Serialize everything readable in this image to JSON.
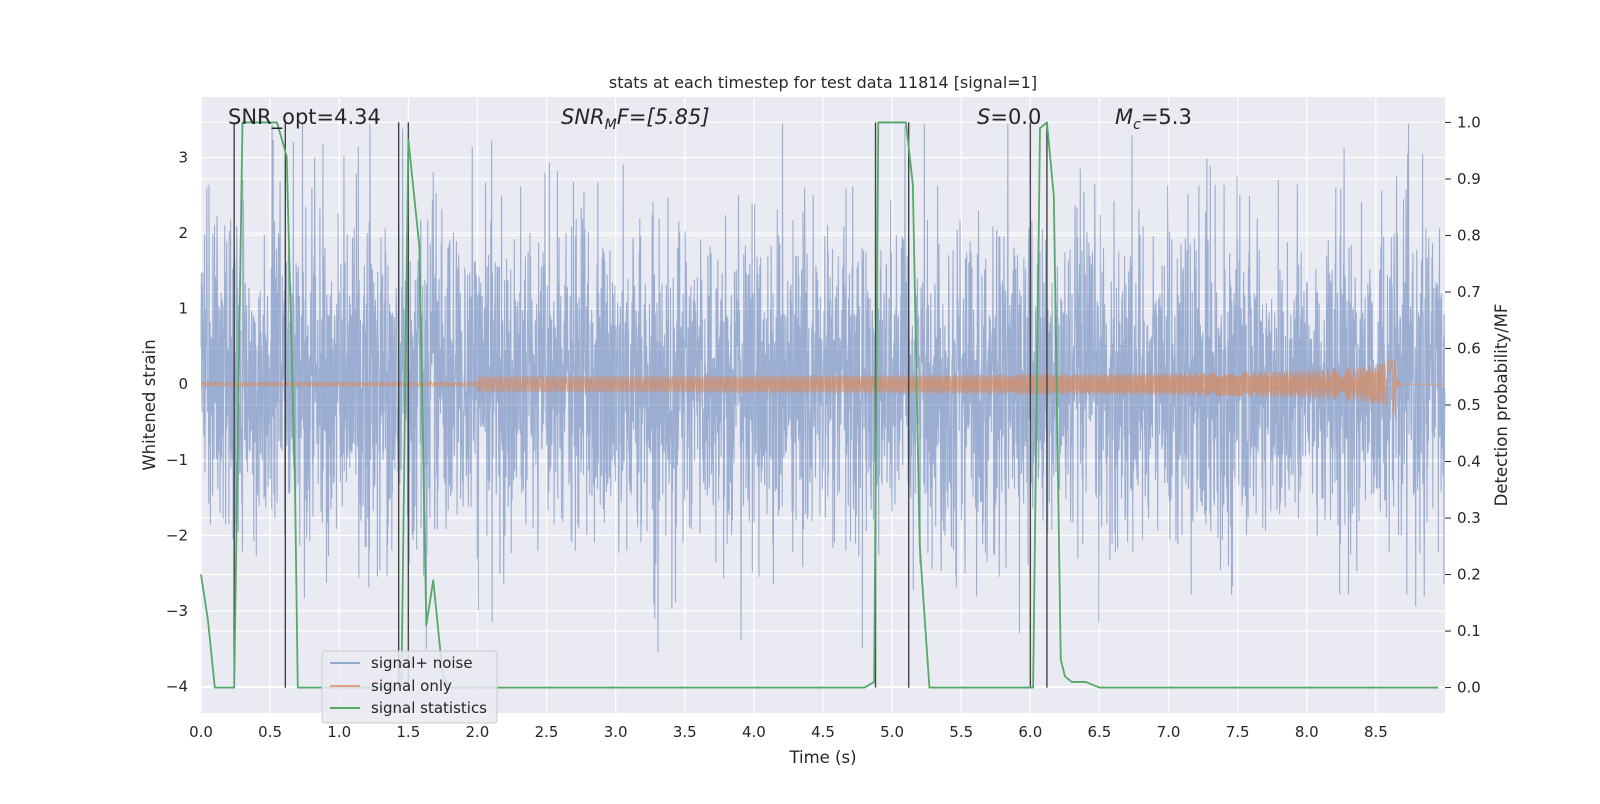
{
  "chart_data": {
    "type": "line",
    "title": "stats at each timestep for test data 11814 [signal=1]",
    "xlabel": "Time (s)",
    "ylabel_left": "Whitened strain",
    "ylabel_right": "Detection probability/MF",
    "xlim": [
      0.0,
      9.0
    ],
    "ylim_left": [
      -4.35,
      3.8
    ],
    "ylim_right": [
      -0.045,
      1.045
    ],
    "x_ticks": [
      "0.0",
      "0.5",
      "1.0",
      "1.5",
      "2.0",
      "2.5",
      "3.0",
      "3.5",
      "4.0",
      "4.5",
      "5.0",
      "5.5",
      "6.0",
      "6.5",
      "7.0",
      "7.5",
      "8.0",
      "8.5"
    ],
    "y_left_ticks": [
      "3",
      "2",
      "1",
      "0",
      "−1",
      "−2",
      "−3",
      "−4"
    ],
    "y_right_ticks": [
      "1.0",
      "0.9",
      "0.8",
      "0.7",
      "0.6",
      "0.5",
      "0.4",
      "0.3",
      "0.2",
      "0.1",
      "0.0"
    ],
    "grid": true,
    "legend_position": "lower-left",
    "colors": {
      "background": "#eaeaf2",
      "grid": "#ffffff",
      "signal_noise": "#4c72b0",
      "signal_only": "#dd8452",
      "signal_statistics": "#55a868",
      "marker_lines": "#444444"
    },
    "annotations": {
      "snr_opt": "SNR_opt=4.34",
      "snr_mf_base": "SNR",
      "snr_mf_sub": "M",
      "snr_mf_rest": "F=[5.85]",
      "s_label": "S",
      "s_rest": "=0.0",
      "mc_base": "M",
      "mc_sub": "c",
      "mc_rest": "=5.3"
    },
    "series": [
      {
        "name": "signal+ noise",
        "axis": "left",
        "description_type": "noise",
        "approx_std": 1.05,
        "x_range": [
          0.0,
          9.0
        ]
      },
      {
        "name": "signal only",
        "axis": "left",
        "description_type": "chirp",
        "end_time": 8.65,
        "peak_amplitude": 0.45,
        "x_range": [
          0.0,
          9.0
        ]
      },
      {
        "name": "signal statistics",
        "axis": "right",
        "x": [
          0.0,
          0.05,
          0.1,
          0.24,
          0.3,
          0.35,
          0.55,
          0.62,
          0.68,
          0.7,
          1.45,
          1.5,
          1.58,
          1.63,
          1.68,
          1.75,
          1.8,
          4.8,
          4.87,
          4.9,
          5.1,
          5.15,
          5.2,
          5.27,
          5.4,
          6.02,
          6.07,
          6.12,
          6.17,
          6.22,
          6.25,
          6.3,
          6.4,
          6.5,
          8.95
        ],
        "y": [
          0.2,
          0.12,
          0.0,
          0.0,
          1.0,
          1.0,
          1.0,
          0.94,
          0.36,
          0.0,
          0.0,
          0.97,
          0.78,
          0.11,
          0.19,
          0.02,
          0.0,
          0.0,
          0.01,
          1.0,
          1.0,
          0.89,
          0.25,
          0.0,
          0.0,
          0.0,
          0.99,
          1.0,
          0.87,
          0.05,
          0.02,
          0.01,
          0.01,
          0.0,
          0.0
        ]
      }
    ],
    "vertical_markers": [
      0.24,
      0.61,
      1.43,
      1.5,
      4.88,
      5.12,
      6.0,
      6.12
    ],
    "legend": [
      "signal+ noise",
      "signal only",
      "signal statistics"
    ]
  }
}
